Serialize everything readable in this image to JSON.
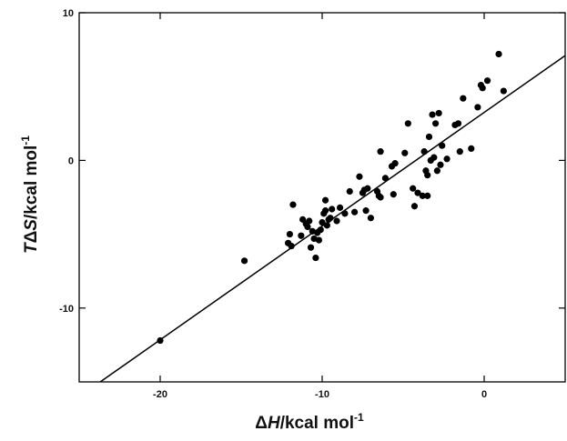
{
  "chart_data": {
    "type": "scatter",
    "title": "",
    "xlabel_parts": {
      "symbol": "Δ",
      "var": "H",
      "unit": "/kcal  mol",
      "sup": "-1"
    },
    "ylabel_parts": {
      "var_t": "T",
      "symbol": "Δ",
      "var": "S",
      "unit": "/kcal mol",
      "sup": "-1"
    },
    "xlim": [
      -25,
      5
    ],
    "ylim": [
      -15,
      10
    ],
    "x_ticks": [
      -20,
      -10,
      0
    ],
    "x_tick_labels": [
      "-20",
      "-10",
      "0"
    ],
    "y_ticks": [
      -10,
      0,
      10
    ],
    "y_tick_labels": [
      "-10",
      "0",
      "10"
    ],
    "grid": false,
    "colors": {
      "points": "#000000",
      "line": "#000000",
      "axes": "#000000"
    },
    "fit_line": {
      "x": [
        -23.7,
        5
      ],
      "y": [
        -15,
        7.1
      ]
    },
    "series": [
      {
        "points": [
          [
            -20,
            -12.2
          ],
          [
            -14.8,
            -6.8
          ],
          [
            -12.1,
            -5.6
          ],
          [
            -12,
            -5
          ],
          [
            -11.9,
            -5.8
          ],
          [
            -11.8,
            -3
          ],
          [
            -11.3,
            -5.1
          ],
          [
            -11.2,
            -4
          ],
          [
            -11,
            -4.3
          ],
          [
            -10.9,
            -4.5
          ],
          [
            -10.8,
            -4.1
          ],
          [
            -10.7,
            -5.9
          ],
          [
            -10.6,
            -4.8
          ],
          [
            -10.5,
            -5.3
          ],
          [
            -10.4,
            -6.6
          ],
          [
            -10.3,
            -4.9
          ],
          [
            -10.2,
            -5.4
          ],
          [
            -10.1,
            -4.7
          ],
          [
            -10,
            -4.2
          ],
          [
            -9.9,
            -3.6
          ],
          [
            -9.8,
            -3.4
          ],
          [
            -9.8,
            -2.7
          ],
          [
            -9.7,
            -4.4
          ],
          [
            -9.6,
            -4
          ],
          [
            -9.5,
            -3.9
          ],
          [
            -9.4,
            -3.3
          ],
          [
            -9.1,
            -4.1
          ],
          [
            -8.9,
            -3.2
          ],
          [
            -8.6,
            -3.6
          ],
          [
            -8.3,
            -2.1
          ],
          [
            -8,
            -3.5
          ],
          [
            -7.7,
            -1.1
          ],
          [
            -7.5,
            -2.2
          ],
          [
            -7.4,
            -2
          ],
          [
            -7.3,
            -3.4
          ],
          [
            -7.2,
            -1.9
          ],
          [
            -7,
            -3.9
          ],
          [
            -6.6,
            -2.1
          ],
          [
            -6.5,
            -2.4
          ],
          [
            -6.4,
            -2.5
          ],
          [
            -6.4,
            0.6
          ],
          [
            -6.1,
            -1.2
          ],
          [
            -5.7,
            -0.4
          ],
          [
            -5.6,
            -2.3
          ],
          [
            -5.5,
            -0.2
          ],
          [
            -4.9,
            0.5
          ],
          [
            -4.7,
            2.5
          ],
          [
            -4.4,
            -1.9
          ],
          [
            -4.3,
            -3.1
          ],
          [
            -4.1,
            -2.2
          ],
          [
            -3.8,
            -2.4
          ],
          [
            -3.7,
            0.6
          ],
          [
            -3.6,
            -0.7
          ],
          [
            -3.5,
            -2.4
          ],
          [
            -3.5,
            -1
          ],
          [
            -3.4,
            1.6
          ],
          [
            -3.3,
            0
          ],
          [
            -3.2,
            3.1
          ],
          [
            -3.1,
            0.2
          ],
          [
            -3,
            2.5
          ],
          [
            -2.9,
            -0.7
          ],
          [
            -2.8,
            3.2
          ],
          [
            -2.7,
            -0.3
          ],
          [
            -2.6,
            1
          ],
          [
            -2.3,
            0.1
          ],
          [
            -1.8,
            2.4
          ],
          [
            -1.6,
            2.5
          ],
          [
            -1.5,
            0.6
          ],
          [
            -1.3,
            4.2
          ],
          [
            -0.8,
            0.8
          ],
          [
            -0.4,
            3.6
          ],
          [
            -0.2,
            5.1
          ],
          [
            -0.1,
            4.9
          ],
          [
            0.2,
            5.4
          ],
          [
            0.9,
            7.2
          ],
          [
            1.2,
            4.7
          ]
        ]
      }
    ]
  }
}
